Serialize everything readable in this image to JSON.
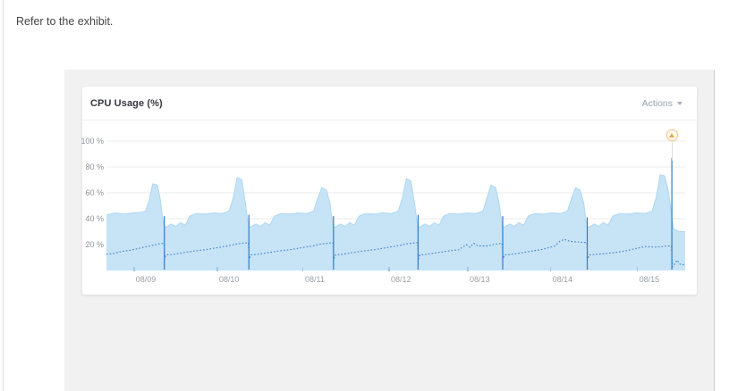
{
  "page": {
    "instruction": "Refer to the exhibit."
  },
  "card": {
    "title": "CPU Usage (%)",
    "actions_label": "Actions",
    "actions_icon": "chevron-down"
  },
  "chart_data": {
    "type": "area",
    "title": "CPU Usage (%)",
    "ylim": [
      0,
      100
    ],
    "grid": true,
    "yticks": [
      {
        "value": 100,
        "label": "100 %"
      },
      {
        "value": 80,
        "label": "80 %"
      },
      {
        "value": 60,
        "label": "60 %"
      },
      {
        "value": 40,
        "label": "40 %"
      },
      {
        "value": 20,
        "label": "20 %"
      }
    ],
    "xticks": [
      {
        "pos": 6.8,
        "label": "08/09"
      },
      {
        "pos": 21.2,
        "label": "08/10"
      },
      {
        "pos": 36.0,
        "label": "08/11"
      },
      {
        "pos": 50.9,
        "label": "08/12"
      },
      {
        "pos": 64.5,
        "label": "08/13"
      },
      {
        "pos": 78.8,
        "label": "08/14"
      },
      {
        "pos": 93.8,
        "label": "08/15"
      }
    ],
    "colors": {
      "area_fill": "#c7e3f6",
      "area_edge": "#aed7f1",
      "avg_line": "#3f88cb",
      "spike_line": "#2f7dc2",
      "grid_line": "#ebebee",
      "alert": "#f0a43a"
    },
    "series": [
      {
        "name": "max-usage-area",
        "type": "area",
        "points": [
          [
            0,
            43
          ],
          [
            1.5,
            44.5
          ],
          [
            3,
            43.5
          ],
          [
            4.5,
            44.5
          ],
          [
            6,
            45
          ],
          [
            6.8,
            46
          ],
          [
            7.4,
            55
          ],
          [
            8,
            67
          ],
          [
            8.8,
            66
          ],
          [
            9.3,
            55
          ],
          [
            9.7,
            40
          ],
          [
            10,
            34
          ],
          [
            10.3,
            33.5
          ],
          [
            11.2,
            36
          ],
          [
            12,
            34
          ],
          [
            12.8,
            37
          ],
          [
            13.6,
            35
          ],
          [
            14.4,
            42
          ],
          [
            15.5,
            44
          ],
          [
            17,
            43.5
          ],
          [
            18.5,
            44.5
          ],
          [
            20,
            44
          ],
          [
            21.2,
            46
          ],
          [
            21.9,
            56
          ],
          [
            22.6,
            72
          ],
          [
            23.4,
            70
          ],
          [
            24,
            52
          ],
          [
            24.4,
            38
          ],
          [
            24.62,
            34
          ],
          [
            24.92,
            33.5
          ],
          [
            25.82,
            36
          ],
          [
            26.62,
            34
          ],
          [
            27.42,
            37
          ],
          [
            28.22,
            35
          ],
          [
            29.02,
            42
          ],
          [
            30.12,
            44
          ],
          [
            31.62,
            43.5
          ],
          [
            33.12,
            44.5
          ],
          [
            34.62,
            44
          ],
          [
            35.82,
            46
          ],
          [
            36.52,
            56
          ],
          [
            37.22,
            64
          ],
          [
            38.02,
            62
          ],
          [
            38.62,
            52
          ],
          [
            39.02,
            38
          ],
          [
            39.23,
            34
          ],
          [
            39.53,
            33.5
          ],
          [
            40.43,
            36
          ],
          [
            41.23,
            34
          ],
          [
            42.03,
            37
          ],
          [
            42.83,
            35
          ],
          [
            43.63,
            42
          ],
          [
            44.73,
            44
          ],
          [
            46.23,
            43.5
          ],
          [
            47.73,
            44.5
          ],
          [
            49.23,
            44
          ],
          [
            50.43,
            46
          ],
          [
            51.13,
            56
          ],
          [
            51.83,
            71
          ],
          [
            52.63,
            69
          ],
          [
            53.23,
            52
          ],
          [
            53.63,
            38
          ],
          [
            53.85,
            34
          ],
          [
            54.15,
            33.5
          ],
          [
            55.05,
            36
          ],
          [
            55.85,
            34
          ],
          [
            56.65,
            37
          ],
          [
            57.45,
            35
          ],
          [
            58.25,
            42
          ],
          [
            59.35,
            44
          ],
          [
            60.85,
            43.5
          ],
          [
            62.35,
            44.5
          ],
          [
            63.85,
            44
          ],
          [
            65.05,
            46
          ],
          [
            65.75,
            56
          ],
          [
            66.45,
            66
          ],
          [
            67.25,
            64
          ],
          [
            67.85,
            52
          ],
          [
            68.25,
            38
          ],
          [
            68.47,
            34
          ],
          [
            68.77,
            33.5
          ],
          [
            69.67,
            36
          ],
          [
            70.47,
            34
          ],
          [
            71.27,
            37
          ],
          [
            72.07,
            35
          ],
          [
            72.87,
            42
          ],
          [
            73.97,
            44
          ],
          [
            75.47,
            43.5
          ],
          [
            76.97,
            44.5
          ],
          [
            78.47,
            44
          ],
          [
            79.67,
            46
          ],
          [
            80.37,
            56
          ],
          [
            81.07,
            64
          ],
          [
            81.87,
            62
          ],
          [
            82.47,
            52
          ],
          [
            82.87,
            38
          ],
          [
            83.08,
            34
          ],
          [
            83.38,
            33.5
          ],
          [
            84.28,
            36
          ],
          [
            85.08,
            34
          ],
          [
            85.88,
            37
          ],
          [
            86.68,
            35
          ],
          [
            87.48,
            42
          ],
          [
            88.58,
            44
          ],
          [
            90.08,
            43.5
          ],
          [
            91.58,
            44.5
          ],
          [
            93.08,
            44
          ],
          [
            94.28,
            46
          ],
          [
            94.98,
            56
          ],
          [
            95.68,
            74
          ],
          [
            96.48,
            73
          ],
          [
            97.08,
            62
          ],
          [
            97.45,
            50
          ],
          [
            97.7,
            40
          ],
          [
            98,
            32
          ],
          [
            99,
            30
          ],
          [
            100,
            30
          ]
        ]
      },
      {
        "name": "avg-usage-line",
        "type": "dotted-line",
        "points": [
          [
            0,
            12.5
          ],
          [
            1,
            13
          ],
          [
            2,
            14
          ],
          [
            3,
            15
          ],
          [
            4,
            15.5
          ],
          [
            5,
            16.5
          ],
          [
            6,
            17.5
          ],
          [
            7,
            18.5
          ],
          [
            8,
            19.5
          ],
          [
            9,
            20.5
          ],
          [
            9.8,
            21
          ],
          [
            9.95,
            21
          ],
          [
            10.05,
            9
          ],
          [
            10.3,
            12
          ],
          [
            11.5,
            12.5
          ],
          [
            13,
            13.5
          ],
          [
            15,
            15
          ],
          [
            17,
            16
          ],
          [
            19,
            17.5
          ],
          [
            21,
            19
          ],
          [
            22.5,
            20.5
          ],
          [
            23.5,
            21
          ],
          [
            24.5,
            21.5
          ],
          [
            24.72,
            9
          ],
          [
            24.92,
            12
          ],
          [
            26.12,
            12.5
          ],
          [
            27.62,
            13.5
          ],
          [
            29.62,
            15
          ],
          [
            31.62,
            16
          ],
          [
            33.62,
            17.5
          ],
          [
            35.62,
            19
          ],
          [
            37.12,
            20.5
          ],
          [
            38.12,
            21
          ],
          [
            39.12,
            21.5
          ],
          [
            39.33,
            9
          ],
          [
            39.53,
            12
          ],
          [
            40.73,
            12.5
          ],
          [
            42.23,
            13.5
          ],
          [
            44.23,
            15
          ],
          [
            46.23,
            16
          ],
          [
            48.23,
            17.5
          ],
          [
            50.23,
            19
          ],
          [
            51.73,
            20.5
          ],
          [
            52.73,
            21
          ],
          [
            53.73,
            21.5
          ],
          [
            53.95,
            9
          ],
          [
            54.15,
            12
          ],
          [
            55.35,
            12.5
          ],
          [
            56.85,
            13.5
          ],
          [
            58.85,
            15
          ],
          [
            60.85,
            16
          ],
          [
            62.2,
            20
          ],
          [
            62.8,
            18
          ],
          [
            63.5,
            21
          ],
          [
            64.2,
            19
          ],
          [
            65.85,
            19
          ],
          [
            67.35,
            20.5
          ],
          [
            68.35,
            21
          ],
          [
            68.57,
            9
          ],
          [
            68.77,
            12
          ],
          [
            69.97,
            12.5
          ],
          [
            71.47,
            13.5
          ],
          [
            73.47,
            15
          ],
          [
            75.47,
            16.5
          ],
          [
            77.47,
            19
          ],
          [
            78.47,
            23
          ],
          [
            79.17,
            24
          ],
          [
            80.07,
            22.5
          ],
          [
            81.57,
            22
          ],
          [
            83.0,
            21.5
          ],
          [
            83.18,
            9
          ],
          [
            83.38,
            12
          ],
          [
            84.58,
            12.5
          ],
          [
            86.08,
            13
          ],
          [
            88.08,
            14
          ],
          [
            90.08,
            15.5
          ],
          [
            91.58,
            17
          ],
          [
            93.08,
            18.5
          ],
          [
            94.58,
            18
          ],
          [
            96.08,
            18.5
          ],
          [
            97.3,
            19
          ],
          [
            97.6,
            19
          ],
          [
            97.8,
            3
          ],
          [
            98.2,
            5
          ],
          [
            98.6,
            8
          ],
          [
            99.1,
            5
          ],
          [
            99.6,
            4.5
          ],
          [
            100,
            5
          ]
        ]
      }
    ],
    "spikes": [
      {
        "pos": 10.0,
        "top": 42
      },
      {
        "pos": 24.62,
        "top": 43
      },
      {
        "pos": 39.23,
        "top": 42
      },
      {
        "pos": 53.85,
        "top": 43
      },
      {
        "pos": 68.47,
        "top": 42
      },
      {
        "pos": 83.08,
        "top": 41
      },
      {
        "pos": 97.7,
        "top": 87,
        "alert": true
      }
    ],
    "alert_marker": {
      "pos": 97.7,
      "icon": "warning-triangle"
    }
  }
}
